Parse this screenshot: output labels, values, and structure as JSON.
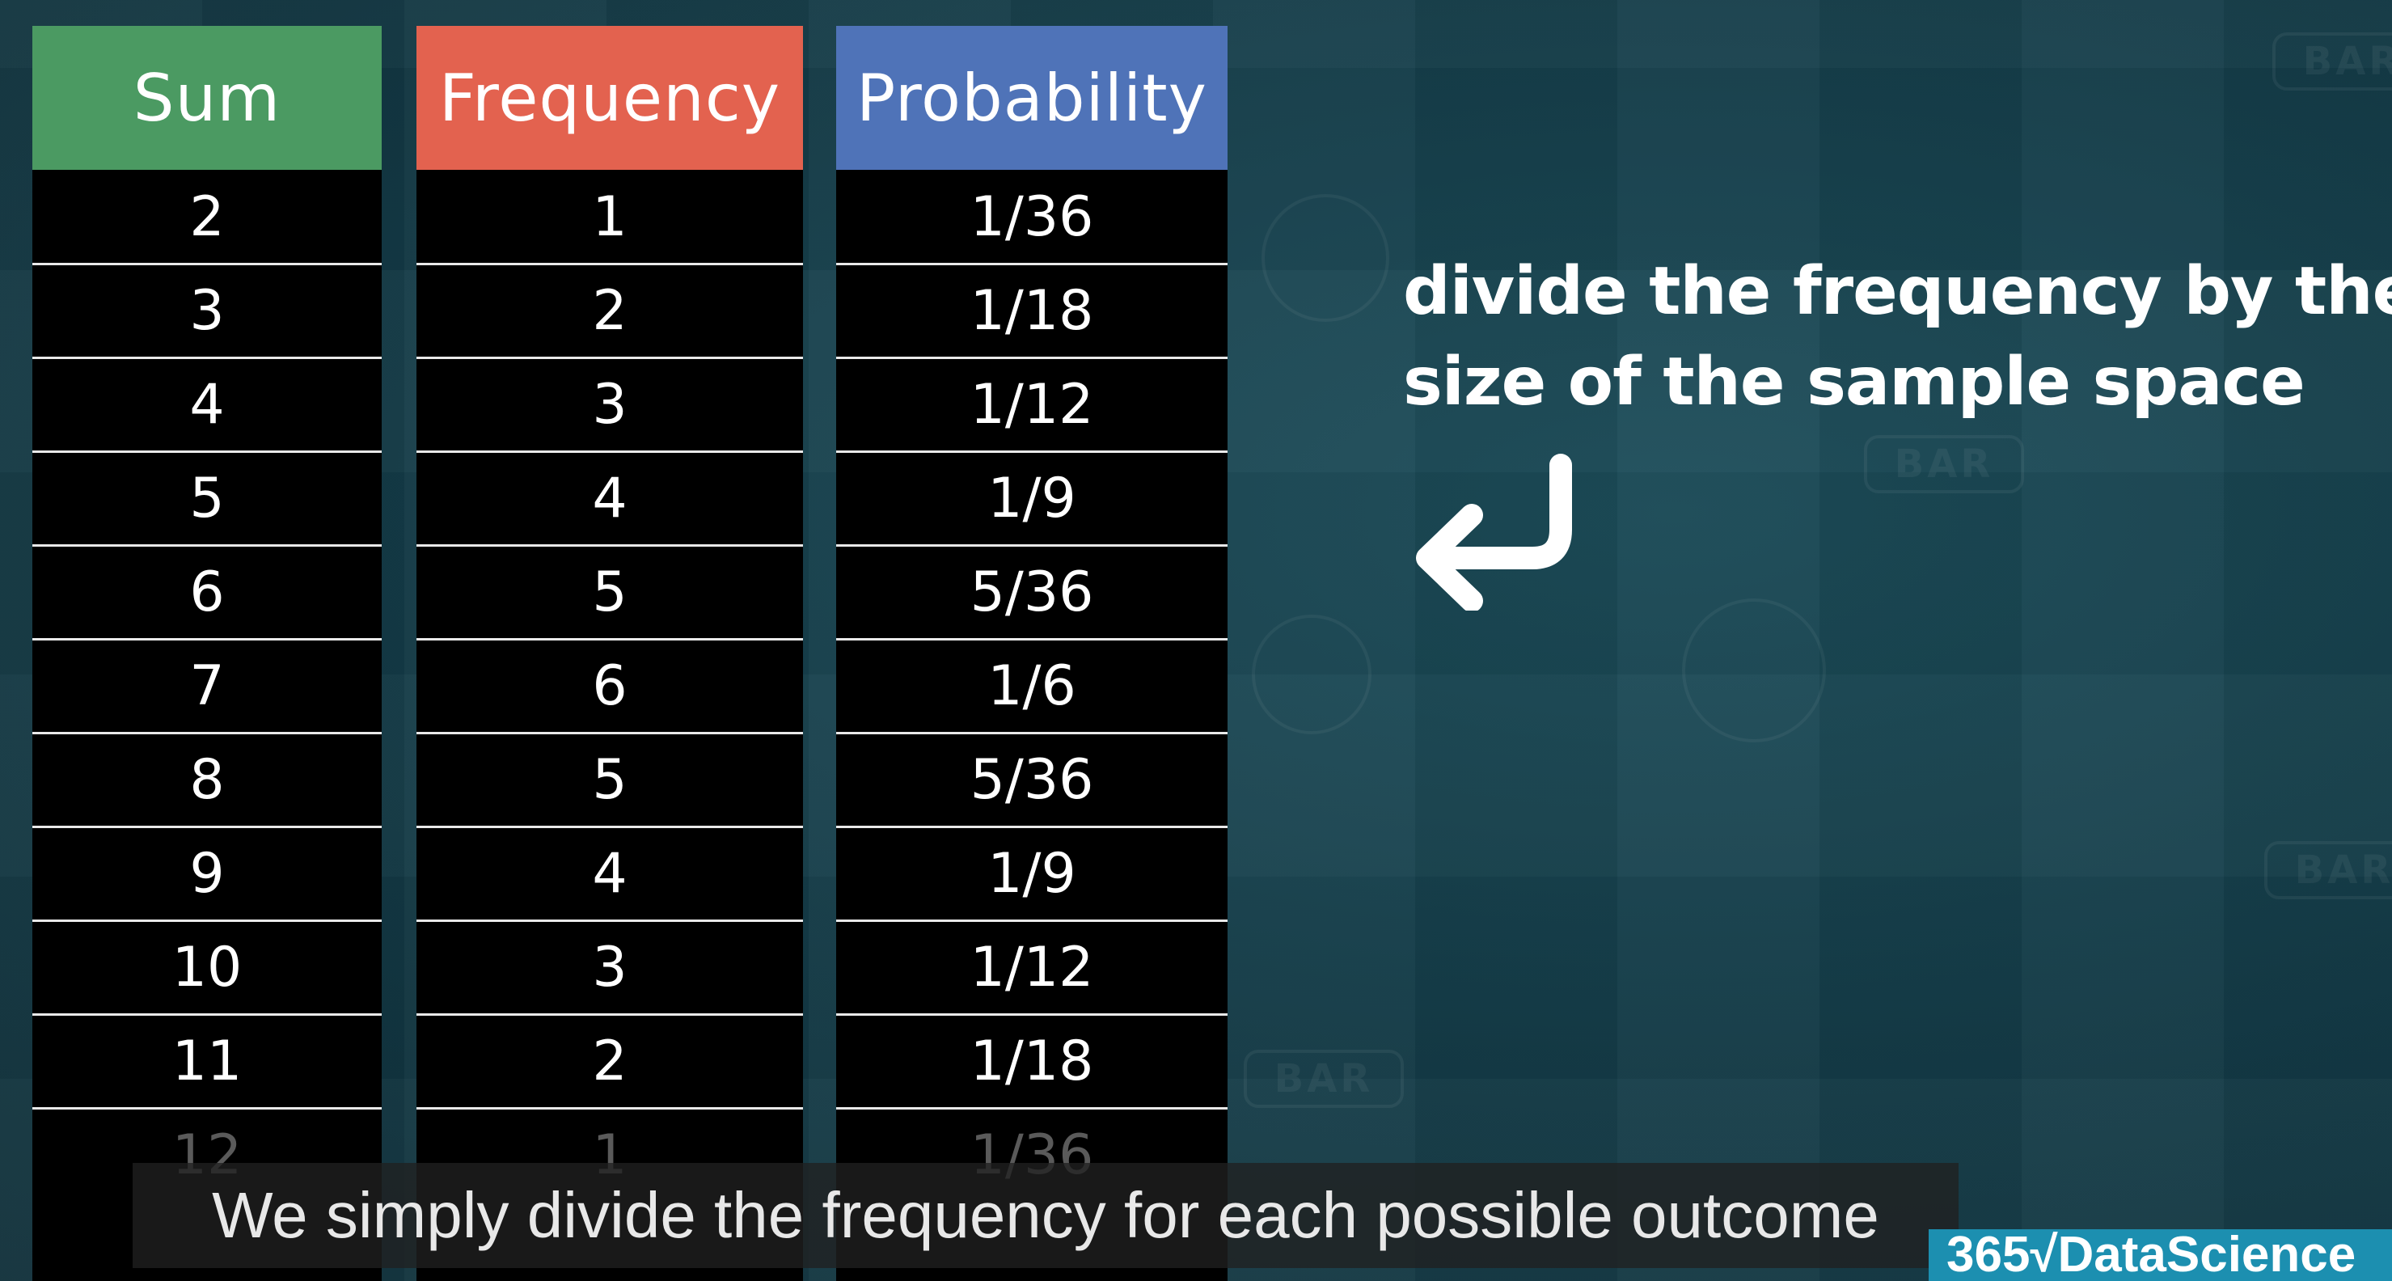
{
  "table": {
    "headers": {
      "sum": "Sum",
      "frequency": "Frequency",
      "probability": "Probability"
    },
    "colors": {
      "sum_header": "#4b9a62",
      "frequency_header": "#e3624f",
      "probability_header": "#4f73b8"
    },
    "rows": [
      {
        "sum": "2",
        "frequency": "1",
        "probability": "1/36"
      },
      {
        "sum": "3",
        "frequency": "2",
        "probability": "1/18"
      },
      {
        "sum": "4",
        "frequency": "3",
        "probability": "1/12"
      },
      {
        "sum": "5",
        "frequency": "4",
        "probability": "1/9"
      },
      {
        "sum": "6",
        "frequency": "5",
        "probability": "5/36"
      },
      {
        "sum": "7",
        "frequency": "6",
        "probability": "1/6"
      },
      {
        "sum": "8",
        "frequency": "5",
        "probability": "5/36"
      },
      {
        "sum": "9",
        "frequency": "4",
        "probability": "1/9"
      },
      {
        "sum": "10",
        "frequency": "3",
        "probability": "1/12"
      },
      {
        "sum": "11",
        "frequency": "2",
        "probability": "1/18"
      },
      {
        "sum": "12",
        "frequency": "1",
        "probability": "1/36"
      }
    ]
  },
  "note": {
    "line1": "divide the frequency by the",
    "line2": "size of the sample space",
    "icon": "return-arrow-icon"
  },
  "caption": {
    "text": "We simply divide the frequency for each possible outcome"
  },
  "logo": {
    "text": "365√DataScience"
  },
  "background": {
    "badge_text": "BAR"
  }
}
